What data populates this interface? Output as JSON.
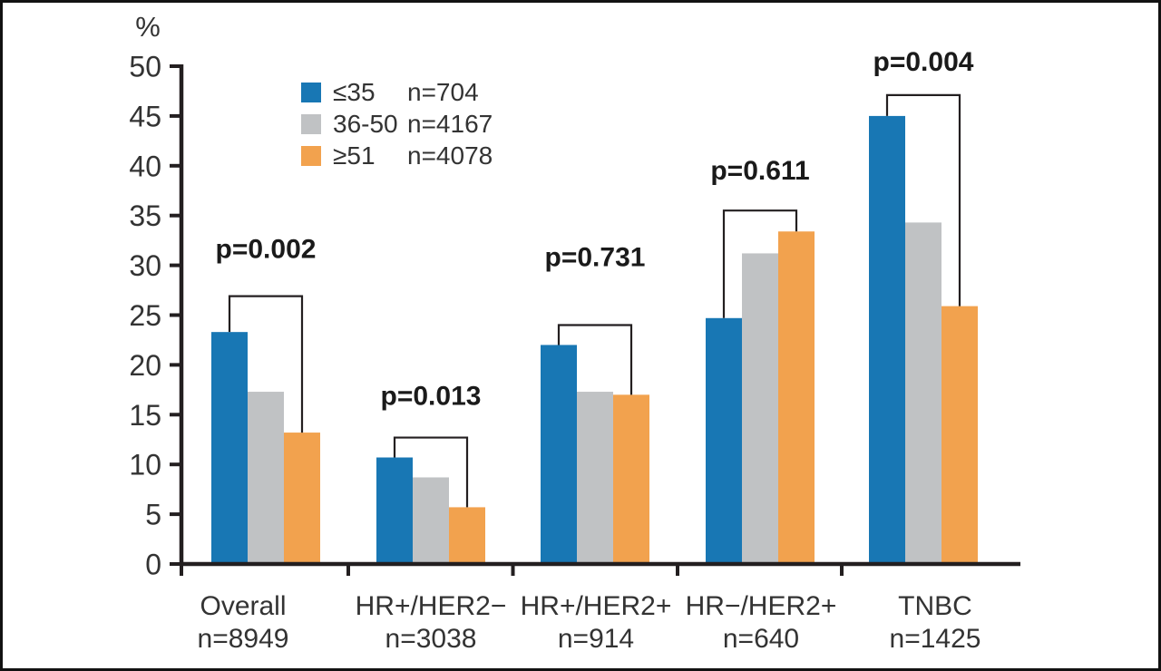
{
  "chart_data": {
    "type": "bar",
    "title": "",
    "unit_label": "%",
    "xlabel": "",
    "ylabel": "%",
    "ylim": [
      0,
      50
    ],
    "yticks": [
      0,
      5,
      10,
      15,
      20,
      25,
      30,
      35,
      40,
      45,
      50
    ],
    "grid": false,
    "legend_position": "upper-left-inside",
    "categories": [
      {
        "label": "Overall",
        "n": "n=8949"
      },
      {
        "label": "HR+/HER2−",
        "n": "n=3038"
      },
      {
        "label": "HR+/HER2+",
        "n": "n=914"
      },
      {
        "label": "HR−/HER2+",
        "n": "n=640"
      },
      {
        "label": "TNBC",
        "n": "n=1425"
      }
    ],
    "series": [
      {
        "name": "≤35",
        "n": "n=704",
        "color": "#1877B4",
        "values": [
          23.3,
          10.7,
          22.0,
          24.7,
          45.0
        ]
      },
      {
        "name": "36-50",
        "n": "n=4167",
        "color": "#C0C2C4",
        "values": [
          17.3,
          8.7,
          17.3,
          31.2,
          34.3
        ]
      },
      {
        "name": "≥51",
        "n": "n=4078",
        "color": "#F2A24E",
        "values": [
          13.2,
          5.7,
          17.0,
          33.4,
          25.9
        ]
      }
    ],
    "p_values": [
      {
        "label": "p=0.002",
        "bracket_top": 26.9
      },
      {
        "label": "p=0.013",
        "bracket_top": 12.7
      },
      {
        "label": "p=0.731",
        "bracket_top": 24.0
      },
      {
        "label": "p=0.611",
        "bracket_top": 35.5
      },
      {
        "label": "p=0.004",
        "bracket_top": 47.1
      }
    ],
    "colors": {
      "axis_ink": "#231F20",
      "text_ink": "#333333",
      "p_value_ink": "#1A1A1A",
      "background": "#FFFFFF"
    }
  }
}
